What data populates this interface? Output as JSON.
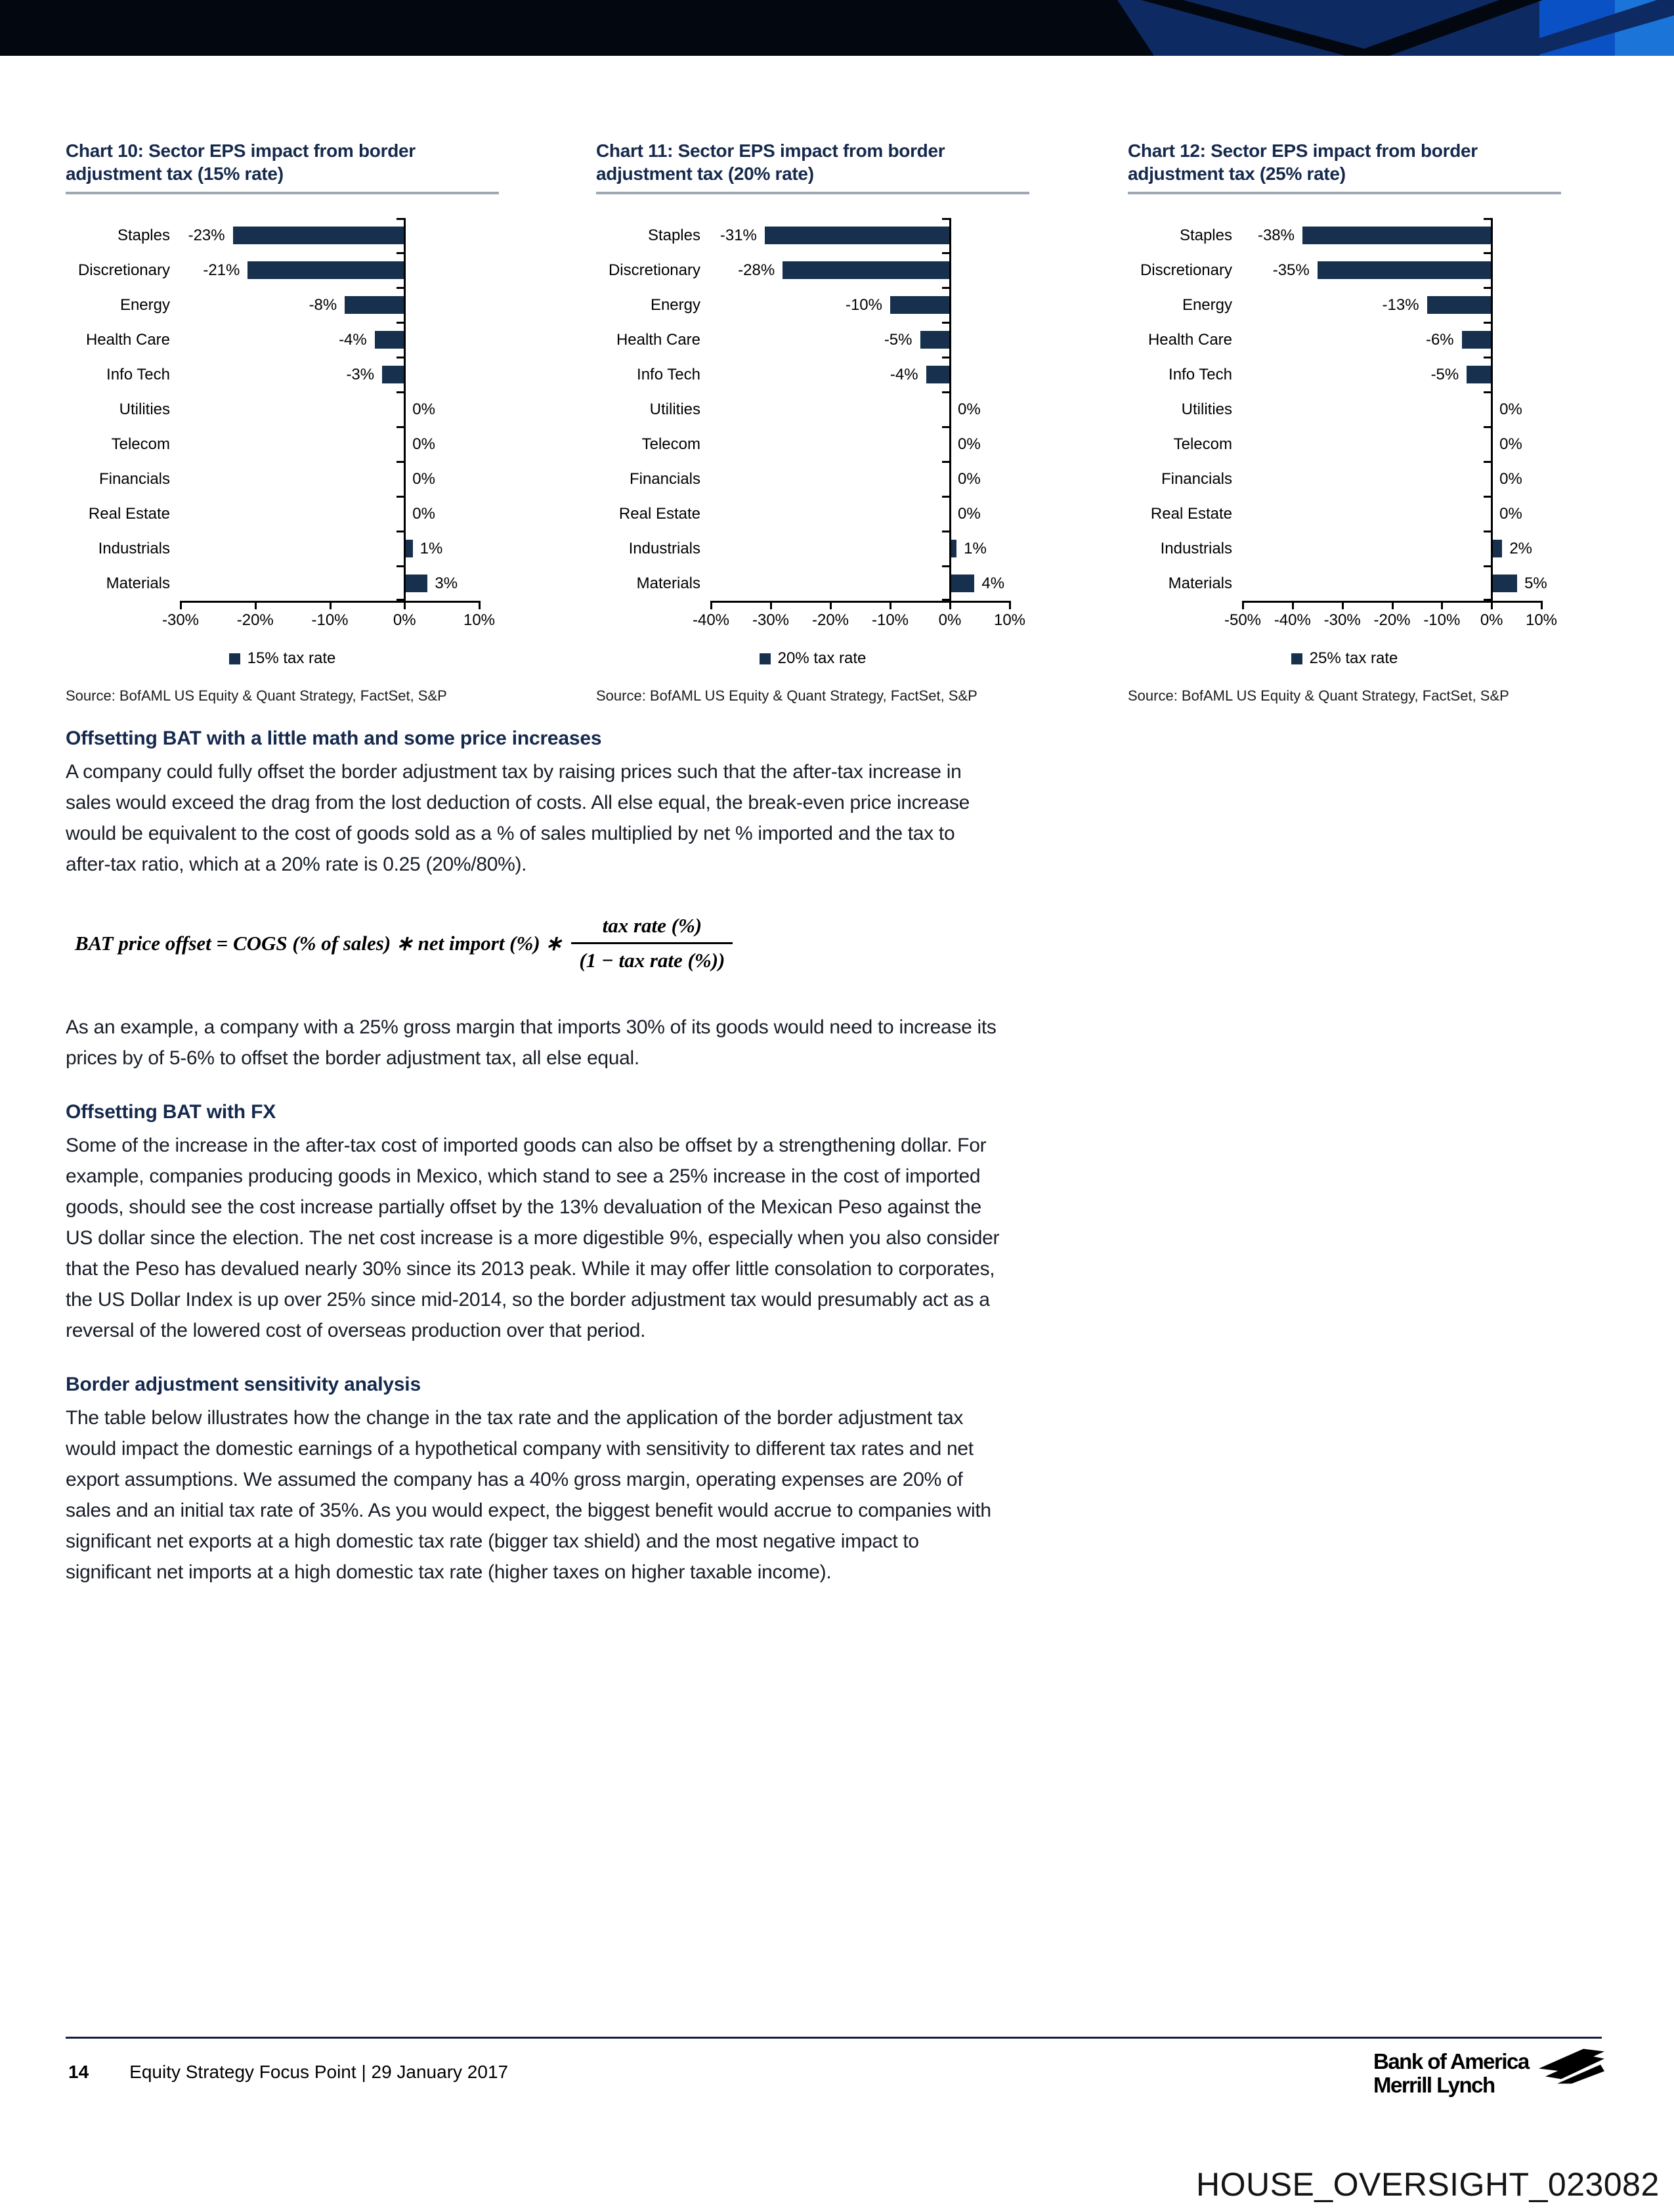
{
  "colors": {
    "bar_navy": "#16304e",
    "title_navy": "#15294d",
    "banner_black": "#03070f",
    "banner_navy": "#0d2a63",
    "banner_mid_blue": "#0b51c6",
    "banner_bright_blue": "#1b74d8"
  },
  "chart_data": [
    {
      "type": "bar",
      "title": "Chart 10: Sector EPS impact from border adjustment tax (15% rate)",
      "title_lines": [
        "Chart 10: Sector EPS impact from border",
        "adjustment tax (15% rate)"
      ],
      "categories": [
        "Staples",
        "Discretionary",
        "Energy",
        "Health Care",
        "Info Tech",
        "Utilities",
        "Telecom",
        "Financials",
        "Real Estate",
        "Industrials",
        "Materials"
      ],
      "values": [
        -23,
        -21,
        -8,
        -4,
        -3,
        0,
        0,
        0,
        0,
        1,
        3
      ],
      "value_labels": [
        "-23%",
        "-21%",
        "-8%",
        "-4%",
        "-3%",
        "0%",
        "0%",
        "0%",
        "0%",
        "1%",
        "3%"
      ],
      "xlim": [
        -30,
        10
      ],
      "tick_step": 10,
      "tick_labels": [
        "-30%",
        "-20%",
        "-10%",
        "0%",
        "10%"
      ],
      "legend": "15% tax rate",
      "source": "Source: BofAML US Equity & Quant Strategy, FactSet, S&P",
      "bar_color": "#16304e"
    },
    {
      "type": "bar",
      "title": "Chart 11: Sector EPS impact from border adjustment tax (20% rate)",
      "title_lines": [
        "Chart 11: Sector EPS impact from border",
        "adjustment tax (20% rate)"
      ],
      "categories": [
        "Staples",
        "Discretionary",
        "Energy",
        "Health Care",
        "Info Tech",
        "Utilities",
        "Telecom",
        "Financials",
        "Real Estate",
        "Industrials",
        "Materials"
      ],
      "values": [
        -31,
        -28,
        -10,
        -5,
        -4,
        0,
        0,
        0,
        0,
        1,
        4
      ],
      "value_labels": [
        "-31%",
        "-28%",
        "-10%",
        "-5%",
        "-4%",
        "0%",
        "0%",
        "0%",
        "0%",
        "1%",
        "4%"
      ],
      "xlim": [
        -40,
        10
      ],
      "tick_step": 10,
      "tick_labels": [
        "-40%",
        "-30%",
        "-20%",
        "-10%",
        "0%",
        "10%"
      ],
      "legend": "20% tax rate",
      "source": "Source: BofAML US Equity & Quant Strategy, FactSet, S&P",
      "bar_color": "#16304e"
    },
    {
      "type": "bar",
      "title": "Chart 12: Sector EPS impact from border adjustment tax (25% rate)",
      "title_lines": [
        "Chart 12: Sector EPS impact from border",
        "adjustment tax (25% rate)"
      ],
      "categories": [
        "Staples",
        "Discretionary",
        "Energy",
        "Health Care",
        "Info Tech",
        "Utilities",
        "Telecom",
        "Financials",
        "Real Estate",
        "Industrials",
        "Materials"
      ],
      "values": [
        -38,
        -35,
        -13,
        -6,
        -5,
        0,
        0,
        0,
        0,
        2,
        5
      ],
      "value_labels": [
        "-38%",
        "-35%",
        "-13%",
        "-6%",
        "-5%",
        "0%",
        "0%",
        "0%",
        "0%",
        "2%",
        "5%"
      ],
      "xlim": [
        -50,
        10
      ],
      "tick_step": 10,
      "tick_labels": [
        "-50%",
        "-40%",
        "-30%",
        "-20%",
        "-10%",
        "0%",
        "10%"
      ],
      "legend": "25% tax rate",
      "source": "Source: BofAML US Equity & Quant Strategy, FactSet, S&P",
      "bar_color": "#16304e"
    }
  ],
  "sections": {
    "s1": {
      "heading": "Offsetting BAT with a little math and some price increases",
      "body": "A company could fully offset the border adjustment tax by raising prices such that the after-tax increase in sales would exceed the drag from the lost deduction of costs. All else equal, the break-even price increase would be equivalent to the cost of goods sold as a % of sales multiplied by net % imported and the tax to after-tax ratio, which at a 20% rate is 0.25 (20%/80%)."
    },
    "s2": {
      "body": "As an example, a company with a 25% gross margin that imports 30% of its goods would need to increase its prices by of 5-6% to offset the border adjustment tax, all else equal."
    },
    "s3": {
      "heading": "Offsetting BAT with FX",
      "body": "Some of the increase in the after-tax cost of imported goods can also be offset by a strengthening dollar. For example, companies producing goods in Mexico, which stand to see a 25% increase in the cost of imported goods, should see the cost increase partially offset by the 13% devaluation of the Mexican Peso against the US dollar since the election. The net cost increase is a more digestible 9%, especially when you also consider that the Peso has devalued nearly 30% since its 2013 peak. While it may offer little consolation to corporates, the US Dollar Index is up over 25% since mid-2014, so the border adjustment tax would presumably act as a reversal of the lowered cost of overseas production over that period."
    },
    "s4": {
      "heading": "Border adjustment sensitivity analysis",
      "body": "The table below illustrates how the change in the tax rate and the application of the border adjustment tax would impact the domestic earnings of a hypothetical company with sensitivity to different tax rates and net export assumptions. We assumed the company has a 40% gross margin, operating expenses are 20% of sales and an initial tax rate of 35%. As you would expect, the biggest benefit would accrue to companies with significant net exports at a high domestic tax rate (bigger tax shield) and the most negative impact to significant net imports at a high domestic tax rate (higher taxes on higher taxable income)."
    }
  },
  "formula": {
    "lhs": "BAT price offset = COGS (% of sales) ∗ net import (%) ∗",
    "numerator": "tax rate (%)",
    "denominator": "(1 − tax rate (%))"
  },
  "footer": {
    "page_number": "14",
    "text": "Equity Strategy Focus Point | 29 January 2017"
  },
  "logo": {
    "line1": "Bank of America",
    "line2": "Merrill Lynch"
  },
  "bates": "HOUSE_OVERSIGHT_023082"
}
